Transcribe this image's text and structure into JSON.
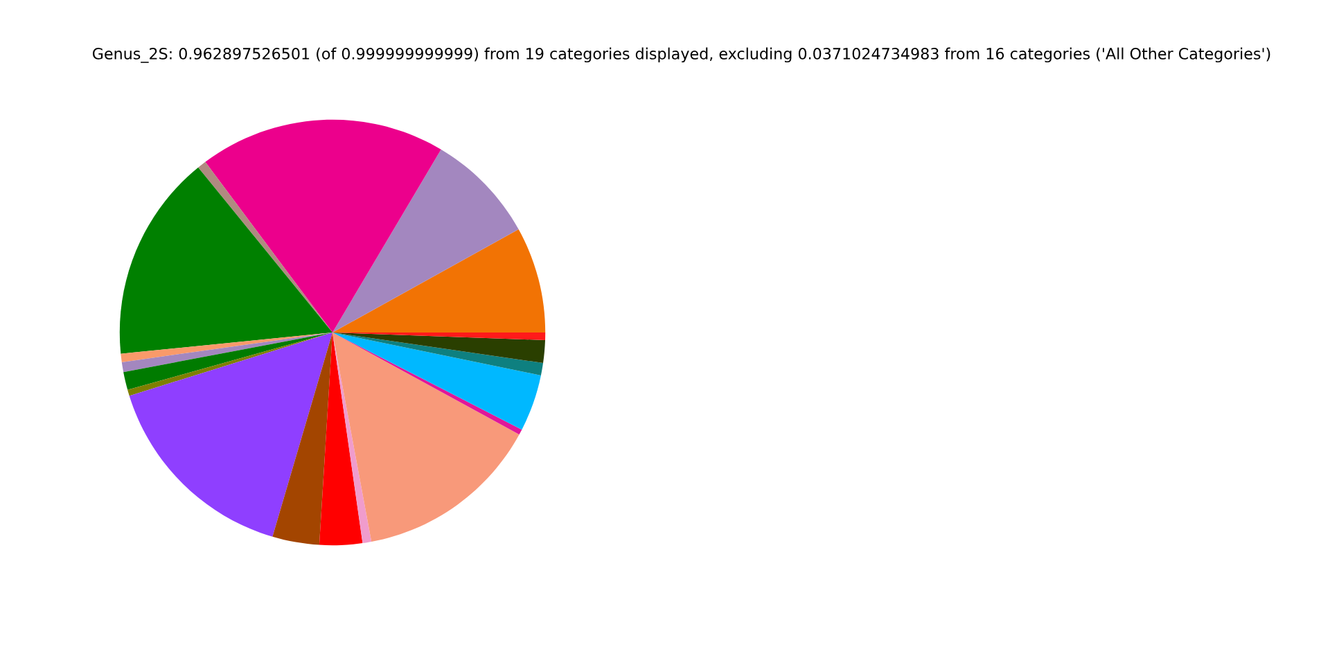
{
  "chart_data": {
    "type": "pie",
    "title": "Genus_2S: 0.962897526501 (of 0.999999999999) from 19 categories displayed, excluding 0.0371024734983 from 16 categories ('All Other Categories')",
    "categories": [
      null,
      null,
      null,
      null,
      null,
      null,
      null,
      null,
      null,
      null,
      null,
      null,
      null,
      null,
      null,
      null,
      null,
      null,
      null
    ],
    "values": [
      8.06,
      8.42,
      18.72,
      0.67,
      15.72,
      0.64,
      0.75,
      1.36,
      0.47,
      15.64,
      3.56,
      3.25,
      0.67,
      14.11,
      0.42,
      4.31,
      0.94,
      1.72,
      0.57
    ],
    "colors": [
      "#f27304",
      "#a387bf",
      "#ec008c",
      "#b08a80",
      "#008000",
      "#f99a6a",
      "#a387bf",
      "#007b00",
      "#7f7f00",
      "#8f3fff",
      "#a34500",
      "#ff0000",
      "#f09ccc",
      "#f8997a",
      "#e0179a",
      "#00b8ff",
      "#0e8080",
      "#2a3f00",
      "#ff1a1a"
    ]
  }
}
